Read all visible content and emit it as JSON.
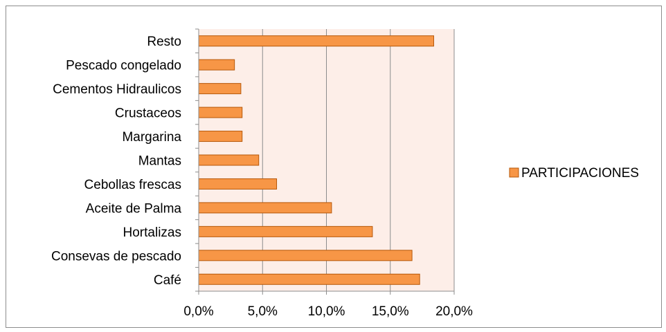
{
  "chart_data": {
    "type": "bar",
    "orientation": "horizontal",
    "categories": [
      "Resto",
      "Pescado congelado",
      "Cementos Hidraulicos",
      "Crustaceos",
      "Margarina",
      "Mantas",
      "Cebollas frescas",
      "Aceite de Palma",
      "Hortalizas",
      "Consevas de pescado",
      "Café"
    ],
    "series": [
      {
        "name": "PARTICIPACIONES",
        "values": [
          0.184,
          0.028,
          0.033,
          0.034,
          0.034,
          0.047,
          0.061,
          0.104,
          0.136,
          0.167,
          0.173
        ]
      }
    ],
    "xlim": [
      0,
      0.2
    ],
    "xticks": [
      0,
      0.05,
      0.1,
      0.15,
      0.2
    ],
    "xtick_labels": [
      "0,0%",
      "5,0%",
      "10,0%",
      "15,0%",
      "20,0%"
    ],
    "title": "",
    "xlabel": "",
    "ylabel": "",
    "grid": "vertical",
    "legend_position": "right",
    "colors": {
      "bar_fill": "#f79646",
      "bar_stroke": "#b65708",
      "plot_background": "#fdeee8",
      "gridline": "#8c8c8c",
      "axis": "#8c8c8c"
    }
  }
}
